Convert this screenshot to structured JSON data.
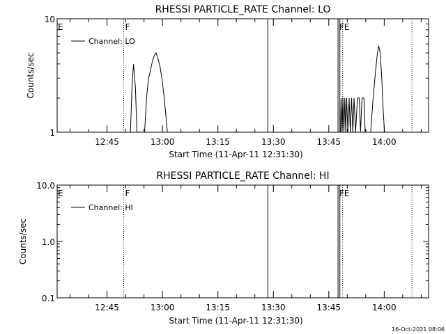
{
  "chart_data": [
    {
      "type": "line",
      "title": "RHESSI PARTICLE_RATE Channel: LO",
      "xlabel": "Start Time (11-Apr-11 12:31:30)",
      "ylabel": "Counts/sec",
      "yscale": "log",
      "ylim": [
        1,
        10
      ],
      "y_tick_labels": [
        "1",
        "10"
      ],
      "y_tick_values": [
        1,
        10
      ],
      "xlim": [
        "12:31:30",
        "14:12:00"
      ],
      "x_tick_labels": [
        "12:45",
        "13:00",
        "13:15",
        "13:30",
        "13:45",
        "14:00"
      ],
      "legend": {
        "position": "top-left",
        "entries": [
          "Channel: LO"
        ]
      },
      "grid": false,
      "flag_lines": [
        {
          "time": "12:49:30",
          "style": "dotted",
          "label": "F"
        },
        {
          "time": "13:28:30",
          "style": "solid",
          "label": ""
        },
        {
          "time": "13:47:30",
          "style": "solid",
          "label": "F"
        },
        {
          "time": "13:48:00",
          "style": "solid",
          "label": ""
        },
        {
          "time": "13:48:45",
          "style": "dotted",
          "label": "E"
        },
        {
          "time": "14:07:30",
          "style": "dotted",
          "label": ""
        }
      ],
      "edge_flag": "E",
      "series": [
        {
          "name": "Channel: LO",
          "points": [
            [
              "12:51:20",
              1
            ],
            [
              "12:51:45",
              2.5
            ],
            [
              "12:52:10",
              4.0
            ],
            [
              "12:52:40",
              2.5
            ],
            [
              "12:53:05",
              1
            ],
            [
              "12:55:10",
              1
            ],
            [
              "12:55:40",
              2.0
            ],
            [
              "12:56:15",
              3.0
            ],
            [
              "12:56:45",
              3.5
            ],
            [
              "12:57:20",
              4.3
            ],
            [
              "12:57:50",
              4.8
            ],
            [
              "12:58:15",
              5.0
            ],
            [
              "12:58:45",
              4.5
            ],
            [
              "12:59:20",
              3.8
            ],
            [
              "12:59:50",
              3.0
            ],
            [
              "13:00:20",
              2.2
            ],
            [
              "13:00:50",
              1.5
            ],
            [
              "13:01:20",
              1
            ],
            [
              "13:48:10",
              1
            ],
            [
              "13:48:20",
              2
            ],
            [
              "13:48:35",
              1
            ],
            [
              "13:48:50",
              2
            ],
            [
              "13:49:05",
              1
            ],
            [
              "13:49:20",
              2
            ],
            [
              "13:49:35",
              1
            ],
            [
              "13:49:50",
              2
            ],
            [
              "13:50:10",
              1
            ],
            [
              "13:50:30",
              2
            ],
            [
              "13:50:50",
              1
            ],
            [
              "13:51:10",
              2
            ],
            [
              "13:51:30",
              1
            ],
            [
              "13:51:50",
              2
            ],
            [
              "13:52:15",
              1
            ],
            [
              "13:52:45",
              2
            ],
            [
              "13:53:15",
              2
            ],
            [
              "13:53:35",
              1
            ],
            [
              "13:54:00",
              2
            ],
            [
              "13:54:30",
              2
            ],
            [
              "13:54:50",
              1
            ],
            [
              "13:56:20",
              1
            ],
            [
              "13:57:00",
              2.0
            ],
            [
              "13:57:40",
              3.5
            ],
            [
              "13:58:10",
              5.0
            ],
            [
              "13:58:30",
              5.8
            ],
            [
              "13:58:55",
              5.0
            ],
            [
              "13:59:20",
              3.0
            ],
            [
              "13:59:45",
              1.5
            ],
            [
              "14:00:05",
              1
            ]
          ]
        }
      ]
    },
    {
      "type": "line",
      "title": "RHESSI PARTICLE_RATE Channel: HI",
      "xlabel": "Start Time (11-Apr-11 12:31:30)",
      "ylabel": "Counts/sec",
      "yscale": "log",
      "ylim": [
        0.1,
        10
      ],
      "y_tick_labels": [
        "0.1",
        "1.0",
        "10.0"
      ],
      "y_tick_values": [
        0.1,
        1,
        10
      ],
      "xlim": [
        "12:31:30",
        "14:12:00"
      ],
      "x_tick_labels": [
        "12:45",
        "13:00",
        "13:15",
        "13:30",
        "13:45",
        "14:00"
      ],
      "legend": {
        "position": "top-left",
        "entries": [
          "Channel: HI"
        ]
      },
      "grid": false,
      "flag_lines": [
        {
          "time": "12:49:30",
          "style": "dotted",
          "label": "F"
        },
        {
          "time": "13:28:30",
          "style": "solid",
          "label": ""
        },
        {
          "time": "13:47:30",
          "style": "solid",
          "label": "F"
        },
        {
          "time": "13:48:00",
          "style": "solid",
          "label": ""
        },
        {
          "time": "13:48:45",
          "style": "dotted",
          "label": "E"
        },
        {
          "time": "14:07:30",
          "style": "dotted",
          "label": ""
        }
      ],
      "edge_flag": "E",
      "series": [
        {
          "name": "Channel: HI",
          "points": []
        }
      ]
    }
  ],
  "footer": {
    "timestamp": "16-Oct-2021 08:06"
  }
}
